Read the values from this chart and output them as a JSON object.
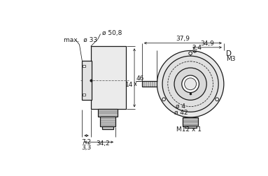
{
  "bg_color": "#ffffff",
  "line_color": "#1a1a1a",
  "annotations": {
    "max_d33": "max.  ø 33",
    "d508": "ø 50,8",
    "d4": "ø 4",
    "d42": "ø 42",
    "m12x1": "M12 x 1",
    "m3": "M3",
    "D_label": "D",
    "dim_46": "46",
    "dim_7_2": "7,2",
    "dim_34_2": "34,2",
    "dim_3_3": "3,3",
    "dim_37_9": "37,9",
    "dim_34_9": "34,9",
    "dim_2_4": "2,4",
    "dim_14": "14"
  }
}
